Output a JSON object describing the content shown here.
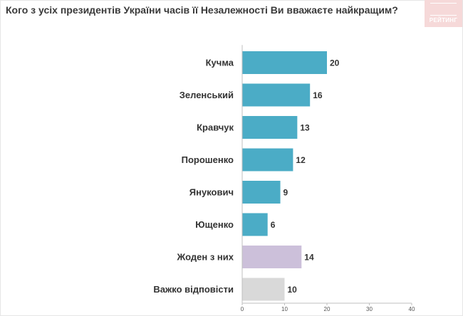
{
  "header": {
    "title": "Кого з усіх президентів України часів її Незалежності Ви вважаєте найкращим?",
    "logo_text": "РЕЙТИНГ"
  },
  "chart_data": {
    "type": "bar",
    "orientation": "horizontal",
    "title": "Кого з усіх президентів України часів її Незалежності Ви вважаєте найкращим?",
    "categories": [
      "Кучма",
      "Зеленський",
      "Кравчук",
      "Порошенко",
      "Янукович",
      "Ющенко",
      "Жоден з них",
      "Важко відповісти"
    ],
    "values": [
      20,
      16,
      13,
      12,
      9,
      6,
      14,
      10
    ],
    "colors": [
      "#4bacc6",
      "#4bacc6",
      "#4bacc6",
      "#4bacc6",
      "#4bacc6",
      "#4bacc6",
      "#ccc0da",
      "#d9d9d9"
    ],
    "xlim": [
      0,
      40
    ],
    "xticks": [
      0,
      10,
      20,
      30,
      40
    ],
    "grid": false,
    "legend": "none",
    "xlabel": "",
    "ylabel": ""
  }
}
